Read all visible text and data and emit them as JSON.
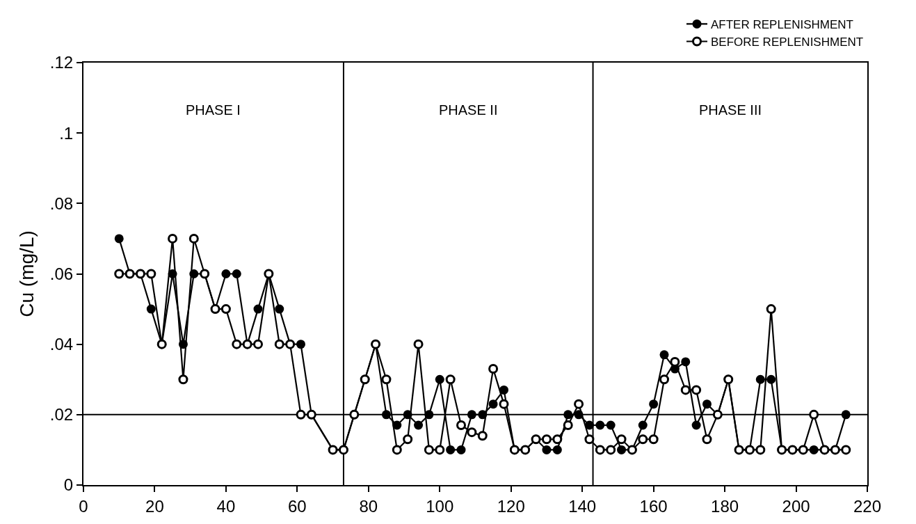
{
  "chart_data": {
    "type": "line",
    "ylabel": "Cu (mg/L)",
    "xlim": [
      0,
      220
    ],
    "xticks": [
      0,
      20,
      40,
      60,
      80,
      100,
      120,
      140,
      160,
      180,
      200,
      220
    ],
    "ylim": [
      0,
      0.12
    ],
    "yticks": [
      {
        "value": 0,
        "label": "0"
      },
      {
        "value": 0.02,
        "label": ".02"
      },
      {
        "value": 0.04,
        "label": ".04"
      },
      {
        "value": 0.06,
        "label": ".06"
      },
      {
        "value": 0.08,
        "label": ".08"
      },
      {
        "value": 0.1,
        "label": ".1"
      },
      {
        "value": 0.12,
        "label": ".12"
      }
    ],
    "grid": false,
    "legend": "top right",
    "line_style": "solid",
    "series": [
      {
        "name": "AFTER REPLENISHMENT",
        "color": "#000000",
        "marker": "circle",
        "x": [
          10,
          13,
          16,
          19,
          22,
          25,
          28,
          31,
          34,
          37,
          40,
          43,
          46,
          49,
          52,
          55,
          58,
          61,
          64,
          70,
          73,
          76,
          79,
          82,
          85,
          88,
          91,
          94,
          97,
          100,
          103,
          106,
          109,
          112,
          115,
          118,
          121,
          124,
          127,
          130,
          133,
          136,
          139,
          142,
          145,
          148,
          151,
          154,
          157,
          160,
          163,
          166,
          169,
          172,
          175,
          178,
          181,
          184,
          187,
          190,
          193,
          196,
          199,
          202,
          205,
          208,
          211,
          214
        ],
        "values": [
          0.07,
          0.06,
          0.06,
          0.05,
          0.04,
          0.06,
          0.04,
          0.06,
          0.06,
          0.05,
          0.06,
          0.06,
          0.04,
          0.05,
          0.06,
          0.05,
          0.04,
          0.04,
          0.02,
          0.01,
          0.01,
          0.02,
          0.03,
          0.04,
          0.02,
          0.017,
          0.02,
          0.017,
          0.02,
          0.03,
          0.01,
          0.01,
          0.02,
          0.02,
          0.023,
          0.027,
          0.01,
          0.01,
          0.013,
          0.01,
          0.01,
          0.02,
          0.02,
          0.017,
          0.017,
          0.017,
          0.01,
          0.01,
          0.017,
          0.023,
          0.037,
          0.033,
          0.035,
          0.017,
          0.023,
          0.02,
          0.03,
          0.01,
          0.01,
          0.03,
          0.03,
          0.01,
          0.01,
          0.01,
          0.01,
          0.01,
          0.01,
          0.02
        ]
      },
      {
        "name": "BEFORE REPLENISHMENT",
        "color": "#000000",
        "marker": "circle-open",
        "x": [
          10,
          13,
          16,
          19,
          22,
          25,
          28,
          31,
          34,
          37,
          40,
          43,
          46,
          49,
          52,
          55,
          58,
          61,
          64,
          70,
          73,
          76,
          79,
          82,
          85,
          88,
          91,
          94,
          97,
          100,
          103,
          106,
          109,
          112,
          115,
          118,
          121,
          124,
          127,
          130,
          133,
          136,
          139,
          142,
          145,
          148,
          151,
          154,
          157,
          160,
          163,
          166,
          169,
          172,
          175,
          178,
          181,
          184,
          187,
          190,
          193,
          196,
          199,
          202,
          205,
          208,
          211,
          214
        ],
        "values": [
          0.06,
          0.06,
          0.06,
          0.06,
          0.04,
          0.07,
          0.03,
          0.07,
          0.06,
          0.05,
          0.05,
          0.04,
          0.04,
          0.04,
          0.06,
          0.04,
          0.04,
          0.02,
          0.02,
          0.01,
          0.01,
          0.02,
          0.03,
          0.04,
          0.03,
          0.01,
          0.013,
          0.04,
          0.01,
          0.01,
          0.03,
          0.017,
          0.015,
          0.014,
          0.033,
          0.023,
          0.01,
          0.01,
          0.013,
          0.013,
          0.013,
          0.017,
          0.023,
          0.013,
          0.01,
          0.01,
          0.013,
          0.01,
          0.013,
          0.013,
          0.03,
          0.035,
          0.027,
          0.027,
          0.013,
          0.02,
          0.03,
          0.01,
          0.01,
          0.01,
          0.05,
          0.01,
          0.01,
          0.01,
          0.02,
          0.01,
          0.01,
          0.01
        ]
      }
    ],
    "ref_lines": [
      {
        "axis": "y",
        "value": 0.02,
        "color": "#000000"
      },
      {
        "axis": "x",
        "value": 73,
        "color": "#000000"
      },
      {
        "axis": "x",
        "value": 143,
        "color": "#000000"
      }
    ],
    "annotations": [
      "PHASE I",
      "PHASE II",
      "PHASE III"
    ]
  }
}
